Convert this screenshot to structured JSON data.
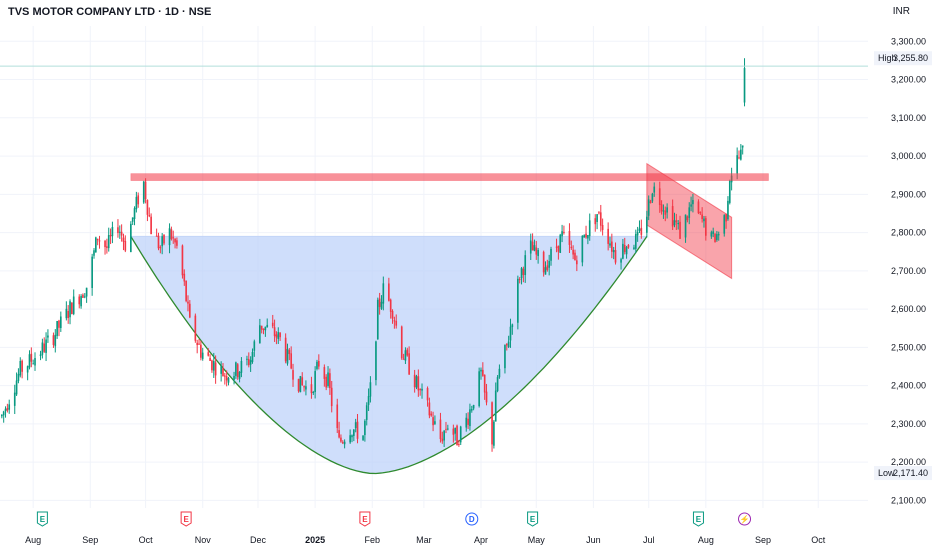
{
  "header": {
    "title": "TVS MOTOR COMPANY LTD · 1D · NSE",
    "currency": "INR"
  },
  "chart_data": {
    "type": "candlestick",
    "ylim": [
      2080,
      3340
    ],
    "y_ticks": [
      2100,
      2200,
      2300,
      2400,
      2500,
      2600,
      2700,
      2800,
      2900,
      3000,
      3100,
      3200,
      3300
    ],
    "y_tick_labels": [
      "2,100.00",
      "2,200.00",
      "2,300.00",
      "2,400.00",
      "2,500.00",
      "2,600.00",
      "2,700.00",
      "2,800.00",
      "2,900.00",
      "3,000.00",
      "3,100.00",
      "3,200.00",
      "3,300.00"
    ],
    "x_months": [
      {
        "label": "Aug",
        "date": "2024-08-01"
      },
      {
        "label": "Sep",
        "date": "2024-09-01"
      },
      {
        "label": "Oct",
        "date": "2024-10-01"
      },
      {
        "label": "Nov",
        "date": "2024-11-01"
      },
      {
        "label": "Dec",
        "date": "2024-12-01"
      },
      {
        "label": "2025",
        "date": "2025-01-01",
        "bold": true
      },
      {
        "label": "Feb",
        "date": "2025-02-01"
      },
      {
        "label": "Mar",
        "date": "2025-03-01"
      },
      {
        "label": "Apr",
        "date": "2025-04-01"
      },
      {
        "label": "May",
        "date": "2025-05-01"
      },
      {
        "label": "Jun",
        "date": "2025-06-01"
      },
      {
        "label": "Jul",
        "date": "2025-07-01"
      },
      {
        "label": "Aug",
        "date": "2025-08-01"
      },
      {
        "label": "Sep",
        "date": "2025-09-01"
      },
      {
        "label": "Oct",
        "date": "2025-10-01"
      }
    ],
    "x_range": [
      "2024-07-14",
      "2025-10-28"
    ],
    "price_path": [
      [
        "2024-07-15",
        2320
      ],
      [
        "2024-07-25",
        2440
      ],
      [
        "2024-08-05",
        2490
      ],
      [
        "2024-08-12",
        2530
      ],
      [
        "2024-08-22",
        2610
      ],
      [
        "2024-08-30",
        2660
      ],
      [
        "2024-09-05",
        2790
      ],
      [
        "2024-09-10",
        2760
      ],
      [
        "2024-09-16",
        2820
      ],
      [
        "2024-09-20",
        2770
      ],
      [
        "2024-09-27",
        2890
      ],
      [
        "2024-09-30",
        2930
      ],
      [
        "2024-10-04",
        2810
      ],
      [
        "2024-10-09",
        2760
      ],
      [
        "2024-10-14",
        2800
      ],
      [
        "2024-10-18",
        2760
      ],
      [
        "2024-10-22",
        2660
      ],
      [
        "2024-10-25",
        2560
      ],
      [
        "2024-10-31",
        2490
      ],
      [
        "2024-11-06",
        2460
      ],
      [
        "2024-11-13",
        2430
      ],
      [
        "2024-11-20",
        2440
      ],
      [
        "2024-11-27",
        2470
      ],
      [
        "2024-12-02",
        2560
      ],
      [
        "2024-12-09",
        2540
      ],
      [
        "2024-12-13",
        2520
      ],
      [
        "2024-12-18",
        2460
      ],
      [
        "2024-12-24",
        2400
      ],
      [
        "2024-12-30",
        2390
      ],
      [
        "2025-01-03",
        2460
      ],
      [
        "2025-01-08",
        2410
      ],
      [
        "2025-01-14",
        2250
      ],
      [
        "2025-01-20",
        2290
      ],
      [
        "2025-01-27",
        2270
      ],
      [
        "2025-02-01",
        2420
      ],
      [
        "2025-02-04",
        2600
      ],
      [
        "2025-02-07",
        2650
      ],
      [
        "2025-02-12",
        2600
      ],
      [
        "2025-02-17",
        2490
      ],
      [
        "2025-02-21",
        2450
      ],
      [
        "2025-02-27",
        2380
      ],
      [
        "2025-03-04",
        2330
      ],
      [
        "2025-03-10",
        2260
      ],
      [
        "2025-03-14",
        2300
      ],
      [
        "2025-03-19",
        2260
      ],
      [
        "2025-03-25",
        2320
      ],
      [
        "2025-04-01",
        2430
      ],
      [
        "2025-04-07",
        2260
      ],
      [
        "2025-04-10",
        2420
      ],
      [
        "2025-04-15",
        2500
      ],
      [
        "2025-04-22",
        2690
      ],
      [
        "2025-04-28",
        2760
      ],
      [
        "2025-05-05",
        2710
      ],
      [
        "2025-05-09",
        2740
      ],
      [
        "2025-05-15",
        2790
      ],
      [
        "2025-05-22",
        2730
      ],
      [
        "2025-05-28",
        2800
      ],
      [
        "2025-06-03",
        2850
      ],
      [
        "2025-06-09",
        2790
      ],
      [
        "2025-06-13",
        2740
      ],
      [
        "2025-06-19",
        2770
      ],
      [
        "2025-06-25",
        2780
      ],
      [
        "2025-06-30",
        2850
      ],
      [
        "2025-07-03",
        2920
      ],
      [
        "2025-07-08",
        2880
      ],
      [
        "2025-07-14",
        2840
      ],
      [
        "2025-07-18",
        2800
      ],
      [
        "2025-07-24",
        2870
      ],
      [
        "2025-07-30",
        2830
      ],
      [
        "2025-08-04",
        2780
      ],
      [
        "2025-08-08",
        2800
      ],
      [
        "2025-08-12",
        2850
      ],
      [
        "2025-08-14",
        2950
      ],
      [
        "2025-08-18",
        2990
      ],
      [
        "2025-08-21",
        3010
      ],
      [
        "2025-08-22",
        3190
      ]
    ],
    "high": {
      "label": "High",
      "value": 3255.8,
      "text": "3,255.80"
    },
    "low": {
      "label": "Low",
      "value": 2171.4,
      "text": "2,171.40"
    },
    "resistance": {
      "level": 2945,
      "from": "2024-09-23",
      "to": "2025-09-04",
      "color": "#f23645"
    },
    "cup": {
      "rim": 2790,
      "bottom": 2170,
      "from": "2024-09-23",
      "to": "2025-06-30",
      "bottom_date": "2025-02-02",
      "fill": "#bbd0fa",
      "line": "#2f8a2f"
    },
    "channel": {
      "from": "2025-06-30",
      "to": "2025-08-15",
      "top_start": 2980,
      "top_end": 2840,
      "bottom_start": 2820,
      "bottom_end": 2680,
      "color": "#f23645"
    },
    "events": [
      {
        "letter": "E",
        "date": "2024-08-06",
        "color": "#089981"
      },
      {
        "letter": "E",
        "date": "2024-10-23",
        "color": "#f23645"
      },
      {
        "letter": "E",
        "date": "2025-01-28",
        "color": "#f23645"
      },
      {
        "letter": "D",
        "date": "2025-03-27",
        "color": "#2962ff"
      },
      {
        "letter": "E",
        "date": "2025-04-29",
        "color": "#089981"
      },
      {
        "letter": "E",
        "date": "2025-07-28",
        "color": "#089981"
      },
      {
        "letter": "⚡",
        "date": "2025-08-22",
        "color": "#9c27b0"
      }
    ],
    "colors": {
      "up": "#089981",
      "down": "#f23645",
      "grid": "#f0f3fa",
      "axis_text": "#131722",
      "current_line": "#b2dfdb"
    }
  }
}
